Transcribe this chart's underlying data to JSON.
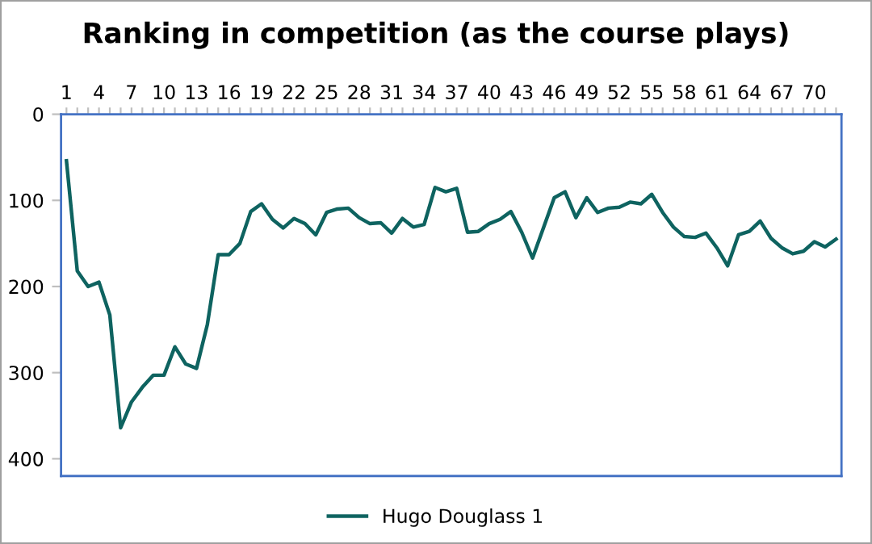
{
  "chart_data": {
    "type": "line",
    "title": "Ranking in competition (as the course plays)",
    "categories": [
      "1",
      null,
      null,
      "4",
      null,
      null,
      "7",
      null,
      null,
      "10",
      null,
      null,
      "13",
      null,
      null,
      "16",
      null,
      null,
      "19",
      null,
      null,
      "22",
      null,
      null,
      "25",
      null,
      null,
      "28",
      null,
      null,
      "31",
      null,
      null,
      "34",
      null,
      null,
      "37",
      null,
      null,
      "40",
      null,
      null,
      "43",
      null,
      null,
      "46",
      null,
      null,
      "49",
      null,
      null,
      "52",
      null,
      null,
      "55",
      null,
      null,
      "58",
      null,
      null,
      "61",
      null,
      null,
      "64",
      null,
      null,
      "67",
      null,
      null,
      "70",
      null,
      null
    ],
    "series": [
      {
        "name": "Hugo Douglass 1",
        "color": "#0e6360",
        "values": [
          54,
          182,
          200,
          195,
          233,
          364,
          334,
          317,
          303,
          303,
          270,
          290,
          295,
          244,
          163,
          163,
          150,
          113,
          104,
          122,
          132,
          121,
          127,
          140,
          114,
          110,
          109,
          120,
          127,
          126,
          138,
          121,
          131,
          128,
          85,
          90,
          86,
          137,
          136,
          127,
          122,
          113,
          137,
          167,
          132,
          97,
          90,
          120,
          97,
          114,
          109,
          108,
          102,
          104,
          93,
          114,
          131,
          142,
          143,
          138,
          155,
          176,
          140,
          136,
          124,
          144,
          155,
          162,
          159,
          148,
          154,
          145
        ]
      }
    ],
    "ylim": [
      420,
      0
    ],
    "yticks": [
      0,
      100,
      200,
      300,
      400
    ],
    "grid": false,
    "legend": "bottom",
    "marker": "none",
    "line_style": "solid"
  }
}
